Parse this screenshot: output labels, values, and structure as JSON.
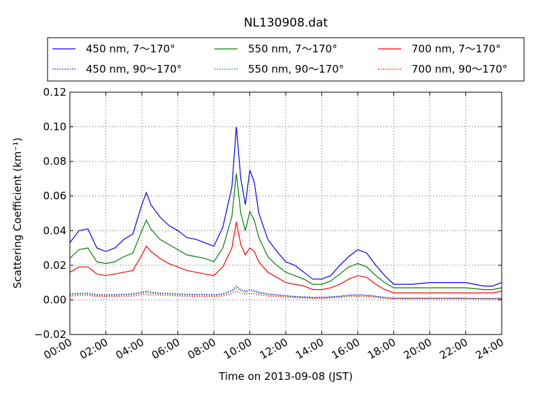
{
  "chart_data": {
    "type": "line",
    "title": "NL130908.dat",
    "xlabel": "Time on 2013-09-08 (JST)",
    "ylabel": "Scattering Coefficient (km⁻¹)",
    "x_ticks": [
      "00:00",
      "02:00",
      "04:00",
      "06:00",
      "08:00",
      "10:00",
      "12:00",
      "14:00",
      "16:00",
      "18:00",
      "20:00",
      "22:00",
      "24:00"
    ],
    "y_ticks": [
      "−0.02",
      "0.00",
      "0.02",
      "0.04",
      "0.06",
      "0.08",
      "0.10",
      "0.12"
    ],
    "xlim": [
      "00:00",
      "24:00"
    ],
    "ylim": [
      -0.02,
      0.12
    ],
    "grid": true,
    "legend_position": "top, above plot (3 columns)",
    "x": [
      "00:00",
      "00:30",
      "01:00",
      "01:30",
      "02:00",
      "02:30",
      "03:00",
      "03:30",
      "04:00",
      "04:15",
      "04:30",
      "05:00",
      "05:30",
      "06:00",
      "06:30",
      "07:00",
      "07:30",
      "08:00",
      "08:30",
      "09:00",
      "09:15",
      "09:30",
      "09:45",
      "10:00",
      "10:15",
      "10:30",
      "11:00",
      "11:30",
      "12:00",
      "12:30",
      "13:00",
      "13:30",
      "14:00",
      "14:30",
      "15:00",
      "15:30",
      "16:00",
      "16:30",
      "17:00",
      "17:30",
      "18:00",
      "19:00",
      "20:00",
      "21:00",
      "22:00",
      "23:00",
      "23:30",
      "24:00"
    ],
    "series": [
      {
        "name": "450 nm, 7～170°",
        "color": "#0000ff",
        "style": "solid",
        "values": [
          0.033,
          0.04,
          0.041,
          0.03,
          0.028,
          0.03,
          0.035,
          0.038,
          0.055,
          0.062,
          0.055,
          0.048,
          0.043,
          0.04,
          0.036,
          0.035,
          0.033,
          0.031,
          0.042,
          0.065,
          0.1,
          0.07,
          0.055,
          0.075,
          0.068,
          0.05,
          0.035,
          0.028,
          0.022,
          0.02,
          0.016,
          0.012,
          0.012,
          0.014,
          0.02,
          0.025,
          0.029,
          0.027,
          0.02,
          0.014,
          0.009,
          0.009,
          0.01,
          0.01,
          0.01,
          0.008,
          0.008,
          0.01
        ]
      },
      {
        "name": "550 nm, 7～170°",
        "color": "#008000",
        "style": "solid",
        "values": [
          0.024,
          0.029,
          0.03,
          0.022,
          0.021,
          0.022,
          0.025,
          0.027,
          0.04,
          0.046,
          0.041,
          0.035,
          0.032,
          0.029,
          0.026,
          0.025,
          0.024,
          0.022,
          0.03,
          0.048,
          0.073,
          0.05,
          0.04,
          0.051,
          0.046,
          0.036,
          0.025,
          0.02,
          0.016,
          0.014,
          0.012,
          0.009,
          0.009,
          0.011,
          0.015,
          0.019,
          0.021,
          0.019,
          0.014,
          0.01,
          0.007,
          0.007,
          0.007,
          0.007,
          0.007,
          0.006,
          0.006,
          0.007
        ]
      },
      {
        "name": "700 nm, 7～170°",
        "color": "#ff0000",
        "style": "solid",
        "values": [
          0.016,
          0.019,
          0.019,
          0.015,
          0.014,
          0.015,
          0.016,
          0.017,
          0.026,
          0.031,
          0.028,
          0.024,
          0.021,
          0.019,
          0.017,
          0.016,
          0.015,
          0.014,
          0.019,
          0.03,
          0.045,
          0.032,
          0.026,
          0.03,
          0.028,
          0.022,
          0.016,
          0.013,
          0.01,
          0.009,
          0.008,
          0.006,
          0.006,
          0.007,
          0.009,
          0.012,
          0.014,
          0.013,
          0.009,
          0.006,
          0.004,
          0.004,
          0.004,
          0.004,
          0.004,
          0.004,
          0.004,
          0.005
        ]
      },
      {
        "name": "450 nm, 90～170°",
        "color": "#0000ff",
        "style": "dotted",
        "values": [
          0.0035,
          0.0038,
          0.0038,
          0.003,
          0.003,
          0.003,
          0.0033,
          0.0035,
          0.0045,
          0.005,
          0.0045,
          0.004,
          0.0038,
          0.0035,
          0.0033,
          0.0032,
          0.0032,
          0.003,
          0.0035,
          0.0055,
          0.008,
          0.006,
          0.005,
          0.006,
          0.0055,
          0.0045,
          0.0035,
          0.003,
          0.0025,
          0.002,
          0.0018,
          0.0015,
          0.0015,
          0.0018,
          0.0022,
          0.0028,
          0.003,
          0.0028,
          0.0022,
          0.0015,
          0.001,
          0.001,
          0.001,
          0.001,
          0.001,
          0.0008,
          0.0008,
          0.001
        ]
      },
      {
        "name": "550 nm, 90～170°",
        "color": "#008000",
        "style": "dotted",
        "values": [
          0.003,
          0.0033,
          0.0033,
          0.0026,
          0.0026,
          0.0026,
          0.0028,
          0.003,
          0.004,
          0.0045,
          0.004,
          0.0035,
          0.0033,
          0.003,
          0.0028,
          0.0027,
          0.0027,
          0.0026,
          0.003,
          0.0048,
          0.007,
          0.0052,
          0.0043,
          0.0052,
          0.0048,
          0.004,
          0.003,
          0.0026,
          0.0021,
          0.0017,
          0.0015,
          0.0012,
          0.0012,
          0.0015,
          0.0019,
          0.0024,
          0.0026,
          0.0024,
          0.0019,
          0.0012,
          0.0008,
          0.0008,
          0.0008,
          0.0008,
          0.0008,
          0.0006,
          0.0006,
          0.0008
        ]
      },
      {
        "name": "700 nm, 90～170°",
        "color": "#ff0000",
        "style": "dotted",
        "values": [
          0.0022,
          0.0025,
          0.0025,
          0.002,
          0.002,
          0.002,
          0.0021,
          0.0022,
          0.003,
          0.0034,
          0.003,
          0.0027,
          0.0025,
          0.0023,
          0.0021,
          0.002,
          0.002,
          0.002,
          0.0022,
          0.0036,
          0.0052,
          0.0039,
          0.0032,
          0.0038,
          0.0036,
          0.003,
          0.0022,
          0.0019,
          0.0016,
          0.0013,
          0.0011,
          0.0009,
          0.0009,
          0.0011,
          0.0014,
          0.0018,
          0.0019,
          0.0018,
          0.0014,
          0.0009,
          0.0006,
          0.0006,
          0.0006,
          0.0006,
          0.0006,
          0.0005,
          0.0005,
          0.0006
        ]
      }
    ]
  }
}
